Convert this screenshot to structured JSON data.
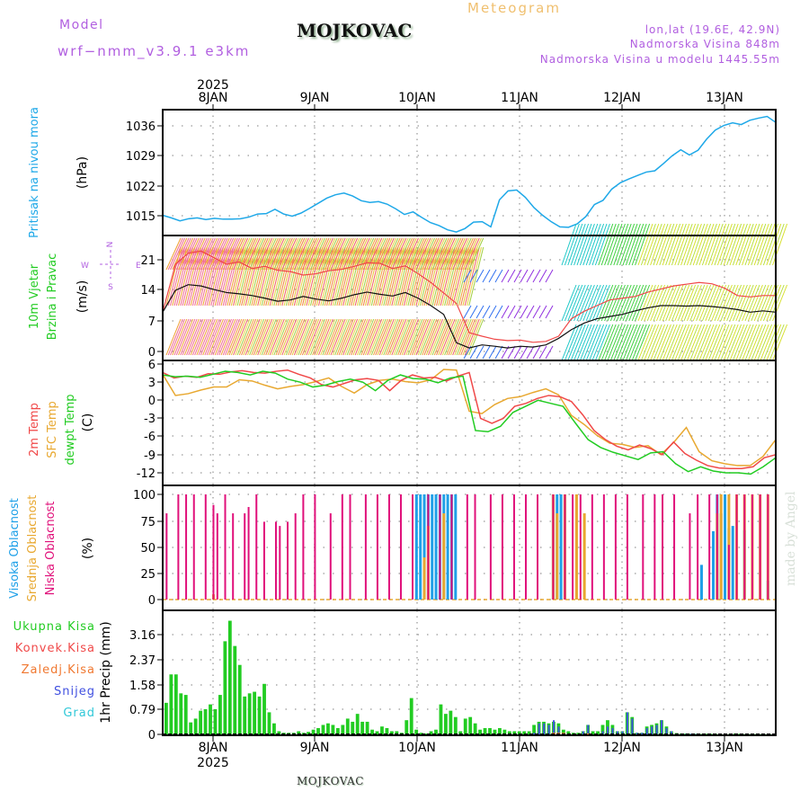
{
  "header": {
    "model_label": "Model",
    "model_version": "wrf−nmm_v3.9.1  e3km",
    "station": "MOJKOVAC",
    "product": "Meteogram",
    "lonlat": "lon,lat (19.6E, 42.9N)",
    "elevation": "Nadmorska Visina 848m",
    "model_elevation": "Nadmorska Visina u modelu 1445.55m"
  },
  "footer": {
    "station": "MOJKOVAC",
    "watermark": "made by Angel"
  },
  "colors": {
    "pressure": "#1ea8e8",
    "temp2m": "#f04848",
    "sfc_temp": "#e8a830",
    "dewpt": "#22cc22",
    "wind_speed": "#111111",
    "wind_gust": "#f04848",
    "cloud_high": "#1ea0e8",
    "cloud_mid": "#e8a830",
    "cloud_low": "#e0107a",
    "rain_total": "#22cc22",
    "rain_conv": "#f04848",
    "rain_freezing": "#f07830",
    "snow": "#4050e0",
    "hail": "#30c8d8",
    "compass": "#b15fe0"
  },
  "time_axis": {
    "days": [
      "8JAN",
      "9JAN",
      "10JAN",
      "11JAN",
      "12JAN",
      "13JAN"
    ],
    "year": "2025",
    "start_hours_before_8jan": 13,
    "total_hours": 157
  },
  "compass": {
    "n": "N",
    "s": "S",
    "e": "E",
    "w": "W"
  },
  "chart_data": [
    {
      "type": "line",
      "title": "Pritisak na nivou mora",
      "ylabel": "(hPa)",
      "yticks": [
        "1015",
        "1022",
        "1029",
        "1036"
      ],
      "ylim": [
        1010,
        1039
      ],
      "grid": true,
      "series": [
        {
          "name": "Pritisak na nivou mora",
          "values": [
            1015.1,
            1014.5,
            1013.8,
            1014.3,
            1014.5,
            1014.1,
            1014.4,
            1014.2,
            1014.2,
            1014.3,
            1014.7,
            1015.4,
            1015.5,
            1016.5,
            1015.4,
            1014.9,
            1015.6,
            1016.7,
            1017.9,
            1019.1,
            1019.9,
            1020.3,
            1019.6,
            1018.5,
            1018.1,
            1018.3,
            1017.7,
            1016.6,
            1015.3,
            1015.9,
            1014.6,
            1013.4,
            1012.7,
            1011.7,
            1011.2,
            1012.0,
            1013.5,
            1013.6,
            1012.4,
            1018.7,
            1020.8,
            1021.0,
            1019.3,
            1016.9,
            1015.1,
            1013.6,
            1012.4,
            1012.3,
            1013.1,
            1014.8,
            1017.6,
            1018.6,
            1021.2,
            1022.7,
            1023.6,
            1024.4,
            1025.2,
            1025.5,
            1027.2,
            1029.0,
            1030.4,
            1029.2,
            1030.3,
            1032.9,
            1035.0,
            1036.1,
            1036.7,
            1036.3,
            1037.3,
            1037.8,
            1038.2,
            1036.8
          ],
          "x_hours": "evenly spaced over full time axis"
        }
      ]
    },
    {
      "type": "line",
      "title": "10m Vjetar Brzina i Pravac",
      "ylabel": "(m/s)",
      "yticks": [
        "0",
        "7",
        "14",
        "21"
      ],
      "ylim": [
        -1.5,
        26
      ],
      "grid": true,
      "series": [
        {
          "name": "wind speed",
          "values": [
            9,
            14,
            15.3,
            15,
            14.2,
            13.5,
            13.2,
            12.8,
            12.2,
            11.5,
            11.8,
            12.6,
            12.0,
            11.6,
            12.2,
            13.0,
            13.6,
            13.1,
            12.7,
            13.5,
            12.2,
            10.5,
            8.5,
            2.0,
            0.8,
            1.5,
            1.2,
            0.8,
            1.2,
            1.0,
            1.5,
            3,
            5,
            6.5,
            7.5,
            8.0,
            8.5,
            9.3,
            10.0,
            10.5,
            10.5,
            10.4,
            10.5,
            10.3,
            10.0,
            9.6,
            9.0,
            9.3,
            9.0
          ]
        },
        {
          "name": "wind gust",
          "values": [
            9,
            20,
            22.5,
            23,
            21.5,
            20,
            20.5,
            19,
            19.5,
            18.6,
            18.3,
            17.5,
            17.8,
            18.5,
            18.8,
            19.5,
            20.3,
            20.2,
            19,
            19.6,
            17.8,
            15.8,
            13.4,
            11.0,
            4.3,
            3.5,
            2.8,
            2.5,
            2.6,
            2.1,
            2.3,
            3.5,
            7.5,
            9.2,
            10.5,
            11.8,
            12.2,
            12.6,
            13.6,
            14.3,
            15.0,
            15.4,
            15.8,
            15.5,
            14.5,
            12.8,
            12.5,
            12.8,
            12.8
          ]
        }
      ]
    },
    {
      "type": "line",
      "title": "2m Temp / SFC Temp / dewpt Temp",
      "ylabel": "(C)",
      "yticks": [
        "-12",
        "-9",
        "-6",
        "-3",
        "0",
        "3",
        "6"
      ],
      "ylim": [
        -13.5,
        6
      ],
      "grid": true,
      "series": [
        {
          "name": "2m Temp",
          "values": [
            4.6,
            3.7,
            4.0,
            3.8,
            4.4,
            4.3,
            4.7,
            4.9,
            4.6,
            4.5,
            4.8,
            5.0,
            4.3,
            3.7,
            2.6,
            2.2,
            2.8,
            3.4,
            3.6,
            3.3,
            1.6,
            3.3,
            4.2,
            3.7,
            3.8,
            3.2,
            4.0,
            4.6,
            -3.0,
            -3.8,
            -3.0,
            -1.0,
            -0.5,
            0.3,
            0.8,
            0.6,
            -0.2,
            -2.4,
            -5.0,
            -6.5,
            -7.6,
            -8.2,
            -7.4,
            -8.0,
            -9.0,
            -6.9,
            -8.8,
            -9.9,
            -10.8,
            -11.2,
            -11.3,
            -11.3,
            -11.0,
            -9.5,
            -9.0
          ]
        },
        {
          "name": "SFC Temp",
          "values": [
            4.3,
            0.8,
            1.1,
            1.7,
            2.2,
            2.2,
            3.4,
            3.2,
            2.5,
            1.9,
            2.3,
            2.6,
            3.1,
            3.7,
            2.3,
            1.2,
            2.6,
            3.3,
            3.5,
            3.1,
            2.9,
            3.4,
            5.1,
            5.0,
            -1.8,
            -2.2,
            -0.7,
            0.3,
            0.6,
            1.3,
            1.9,
            0.9,
            -2.5,
            -4.0,
            -5.8,
            -7.1,
            -7.3,
            -7.8,
            -7.5,
            -9.0,
            -7.0,
            -4.5,
            -8.5,
            -10.0,
            -10.5,
            -10.8,
            -10.8,
            -9.3,
            -6.5
          ]
        },
        {
          "name": "dewpt Temp",
          "values": [
            4.2,
            3.9,
            4.0,
            3.8,
            4.3,
            4.8,
            4.6,
            4.2,
            4.8,
            4.5,
            3.5,
            3.0,
            2.2,
            2.5,
            3.1,
            3.5,
            3.0,
            1.6,
            3.3,
            4.2,
            3.6,
            3.5,
            2.9,
            3.7,
            4.0,
            -5.0,
            -5.2,
            -4.3,
            -2.0,
            -1.0,
            0.0,
            -0.5,
            -1.0,
            -3.8,
            -6.5,
            -7.8,
            -8.6,
            -9.2,
            -9.8,
            -8.7,
            -8.5,
            -10.5,
            -11.8,
            -11.0,
            -11.7,
            -12.0,
            -12.0,
            -12.2,
            -11.0,
            -9.5
          ]
        }
      ]
    },
    {
      "type": "bar",
      "title": "Visoka Oblacnost / Srednja Oblacnost / Niska Oblacnost",
      "ylabel": "(%)",
      "yticks": [
        "0",
        "25",
        "50",
        "75",
        "100"
      ],
      "ylim": [
        -5,
        105
      ],
      "grid": true,
      "series": [
        {
          "name": "Niska Oblacnost",
          "hours": [
            1,
            4,
            6,
            8,
            11,
            13,
            14,
            16,
            18,
            21,
            22,
            24,
            26,
            29,
            30,
            32,
            34,
            36,
            39,
            43,
            46,
            48,
            52,
            55,
            58,
            61,
            64,
            68,
            71,
            74,
            78,
            80,
            84,
            87,
            90,
            93,
            96,
            100,
            103,
            105,
            107,
            110,
            113,
            116,
            119,
            123,
            126,
            128,
            131,
            135,
            137,
            140,
            142,
            145,
            147,
            149,
            151,
            153,
            155
          ],
          "values": [
            82,
            100,
            100,
            100,
            100,
            90,
            82,
            100,
            82,
            82,
            88,
            100,
            74,
            74,
            70,
            74,
            82,
            100,
            100,
            82,
            100,
            100,
            100,
            100,
            100,
            100,
            100,
            100,
            100,
            100,
            100,
            100,
            100,
            100,
            100,
            100,
            100,
            100,
            100,
            100,
            100,
            100,
            100,
            100,
            100,
            100,
            100,
            100,
            100,
            82,
            100,
            100,
            100,
            52,
            100,
            100,
            100,
            100,
            100
          ]
        },
        {
          "name": "Srednja Oblacnost",
          "hours": [
            13,
            67,
            68,
            72,
            100,
            101,
            103,
            106,
            108,
            142,
            143,
            145,
            147,
            149,
            151,
            153,
            155
          ],
          "values": [
            5,
            40,
            70,
            82,
            100,
            82,
            100,
            100,
            82,
            82,
            100,
            100,
            100,
            100,
            100,
            100,
            100
          ]
        },
        {
          "name": "Visoka Oblacnost",
          "hours": [
            65,
            66,
            67,
            68,
            69,
            70,
            71,
            72,
            73,
            74,
            75,
            100,
            101,
            102,
            103,
            138,
            141,
            142,
            143,
            144,
            145,
            146,
            149,
            155
          ],
          "values": [
            100,
            100,
            100,
            100,
            100,
            100,
            100,
            100,
            100,
            100,
            100,
            100,
            100,
            100,
            100,
            33,
            65,
            100,
            82,
            100,
            68,
            70,
            66,
            18
          ]
        }
      ]
    },
    {
      "type": "bar",
      "title": "1hr Precip",
      "ylabel": "1hr Precip (mm)",
      "yticks": [
        "0",
        "0.79",
        "1.58",
        "2.37",
        "3.16"
      ],
      "ylim": [
        0,
        3.8
      ],
      "grid": true,
      "legend": [
        "Ukupna Kisa",
        "Konvek.Kisa",
        "Zaledj.Kisa",
        "Snijeg",
        "Grad"
      ],
      "series": [
        {
          "name": "Ukupna Kisa",
          "values": [
            1.0,
            1.9,
            1.9,
            1.3,
            1.25,
            0.38,
            0.5,
            0.75,
            0.8,
            0.95,
            0.8,
            1.25,
            2.95,
            3.6,
            2.8,
            2.2,
            1.2,
            1.3,
            1.35,
            1.2,
            1.6,
            0.7,
            0.35,
            0.1,
            0.05,
            0.05,
            0.05,
            0.1,
            0.05,
            0.08,
            0.15,
            0.2,
            0.3,
            0.35,
            0.3,
            0.2,
            0.3,
            0.5,
            0.4,
            0.65,
            0.4,
            0.4,
            0.15,
            0.1,
            0.25,
            0.2,
            0.1,
            0.1,
            0.05,
            0.45,
            1.15,
            0.15,
            0.05,
            0.03,
            0.1,
            0.15,
            0.95,
            0.65,
            0.75,
            0.55,
            0.1,
            0.5,
            0.55,
            0.35,
            0.15,
            0.2,
            0.2,
            0.15,
            0.2,
            0.15,
            0.1,
            0.1,
            0.1,
            0.1,
            0.1,
            0.3,
            0.4,
            0.4,
            0.35,
            0.4,
            0.35,
            0.15,
            0.1,
            0.05,
            0.05,
            0.1,
            0.3,
            0.1,
            0.1,
            0.3,
            0.45,
            0.3,
            0.1,
            0.1,
            0.7,
            0.55,
            0.05,
            0.05,
            0.25,
            0.3,
            0.35,
            0.45,
            0.25,
            0.1,
            0.04,
            0.03,
            0.03,
            0.02,
            0.02,
            0.01,
            0.02,
            0.02,
            0.02,
            0.02,
            0.02,
            0.02,
            0.03,
            0.02,
            0.01,
            0.01,
            0.01,
            0.01,
            0.01,
            0.01,
            0.01
          ]
        },
        {
          "name": "Snijeg",
          "values": [
            0,
            0,
            0,
            0,
            0,
            0,
            0,
            0,
            0,
            0,
            0,
            0,
            0,
            0,
            0,
            0,
            0,
            0,
            0,
            0,
            0,
            0,
            0,
            0,
            0,
            0,
            0,
            0,
            0,
            0,
            0,
            0,
            0,
            0,
            0,
            0,
            0,
            0,
            0,
            0,
            0,
            0,
            0,
            0,
            0,
            0,
            0,
            0,
            0,
            0,
            0,
            0,
            0,
            0,
            0,
            0,
            0,
            0,
            0,
            0,
            0,
            0,
            0,
            0,
            0,
            0,
            0,
            0,
            0,
            0,
            0,
            0,
            0,
            0,
            0,
            0.05,
            0.35,
            0.35,
            0.3,
            0.45,
            0.25,
            0,
            0,
            0,
            0,
            0.1,
            0.3,
            0,
            0,
            0.1,
            0.25,
            0.2,
            0.1,
            0.1,
            0.7,
            0.5,
            0.05,
            0.05,
            0.2,
            0.25,
            0.3,
            0.45,
            0.2,
            0.1,
            0.02,
            0.02,
            0.02,
            0.02,
            0.01,
            0,
            0,
            0,
            0,
            0,
            0,
            0,
            0.02,
            0,
            0,
            0,
            0,
            0,
            0,
            0,
            0
          ]
        },
        {
          "name": "Zaledj.Kisa",
          "values": [
            0,
            0,
            0,
            0,
            0,
            0,
            0,
            0,
            0,
            0,
            0,
            0,
            0,
            0,
            0,
            0,
            0,
            0,
            0,
            0,
            0,
            0,
            0,
            0,
            0,
            0,
            0,
            0,
            0,
            0,
            0,
            0,
            0,
            0,
            0,
            0,
            0,
            0,
            0,
            0,
            0,
            0,
            0,
            0,
            0,
            0,
            0,
            0,
            0,
            0,
            0,
            0,
            0,
            0,
            0,
            0,
            0,
            0,
            0,
            0,
            0,
            0,
            0,
            0,
            0,
            0,
            0,
            0,
            0,
            0,
            0,
            0,
            0,
            0,
            0,
            0,
            0,
            0,
            0,
            0.05,
            0.05,
            0.05,
            0,
            0,
            0,
            0,
            0.03,
            0,
            0,
            0,
            0,
            0,
            0,
            0,
            0,
            0,
            0,
            0,
            0,
            0,
            0,
            0,
            0,
            0,
            0,
            0,
            0,
            0,
            0,
            0,
            0,
            0,
            0,
            0,
            0,
            0,
            0,
            0,
            0,
            0,
            0,
            0,
            0,
            0,
            0
          ]
        }
      ]
    }
  ]
}
